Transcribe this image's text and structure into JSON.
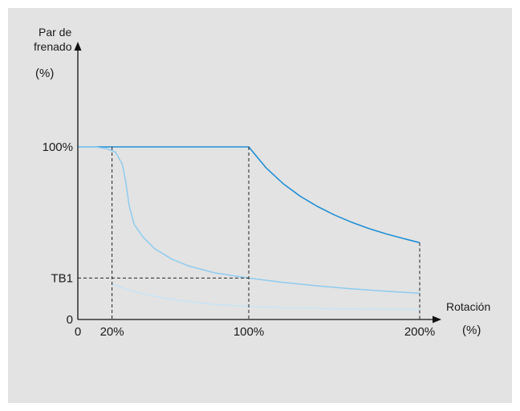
{
  "chart_data": {
    "type": "line",
    "ylabel_line1": "Par de",
    "ylabel_line2": "frenado",
    "yunit": "(%)",
    "xlabel": "Rotación",
    "xunit": "(%)",
    "x_ticks": [
      {
        "label": "0",
        "value": 0
      },
      {
        "label": "20%",
        "value": 20
      },
      {
        "label": "100%",
        "value": 100
      },
      {
        "label": "200%",
        "value": 200
      }
    ],
    "y_ticks": [
      {
        "label": "0",
        "value": 0
      },
      {
        "label": "TB1",
        "value": 24
      },
      {
        "label": "100%",
        "value": 100
      }
    ],
    "xlim": [
      0,
      215
    ],
    "ylim": [
      0,
      140
    ],
    "series": [
      {
        "color": "#1f8fd6",
        "width": 1.6,
        "points": [
          [
            0,
            100
          ],
          [
            100,
            100
          ],
          [
            110,
            88
          ],
          [
            120,
            78.8
          ],
          [
            130,
            71.5
          ],
          [
            140,
            65.6
          ],
          [
            150,
            60.6
          ],
          [
            160,
            56.4
          ],
          [
            170,
            52.8
          ],
          [
            180,
            49.7
          ],
          [
            190,
            47
          ],
          [
            200,
            44.5
          ]
        ]
      },
      {
        "color": "#8ecbef",
        "width": 1.5,
        "points": [
          [
            0,
            100
          ],
          [
            10,
            100
          ],
          [
            17,
            99
          ],
          [
            22,
            97
          ],
          [
            26,
            90
          ],
          [
            28,
            80
          ],
          [
            30,
            66
          ],
          [
            33,
            55
          ],
          [
            38,
            48
          ],
          [
            45,
            41
          ],
          [
            55,
            35
          ],
          [
            65,
            31
          ],
          [
            80,
            27
          ],
          [
            100,
            24
          ],
          [
            120,
            21.5
          ],
          [
            140,
            19.5
          ],
          [
            160,
            17.8
          ],
          [
            180,
            16.4
          ],
          [
            200,
            15.2
          ]
        ]
      },
      {
        "color": "#c8e4f6",
        "width": 1.5,
        "points": [
          [
            20,
            20.5
          ],
          [
            30,
            17
          ],
          [
            40,
            14.5
          ],
          [
            50,
            12.5
          ],
          [
            60,
            11
          ],
          [
            70,
            9.8
          ],
          [
            80,
            8.8
          ],
          [
            100,
            7.5
          ],
          [
            120,
            6.8
          ],
          [
            150,
            6.3
          ],
          [
            180,
            6
          ],
          [
            200,
            5.8
          ]
        ]
      }
    ],
    "guides": [
      {
        "from": [
          20,
          100
        ],
        "to": [
          20,
          0
        ]
      },
      {
        "from": [
          100,
          100
        ],
        "to": [
          100,
          0
        ]
      },
      {
        "from": [
          200,
          44.5
        ],
        "to": [
          200,
          0
        ]
      },
      {
        "from": [
          0,
          24
        ],
        "to": [
          100,
          24
        ]
      }
    ]
  }
}
